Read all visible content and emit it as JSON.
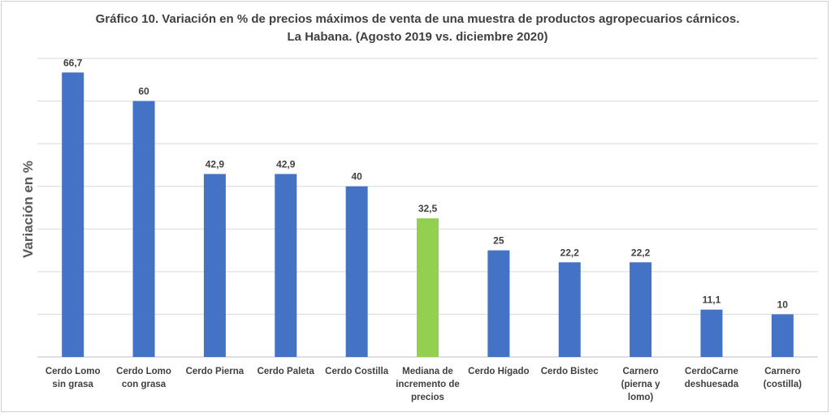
{
  "chart_data": {
    "type": "bar",
    "title_line1": "Gráfico 10. Variación en % de precios máximos de venta de una muestra de productos agropecuarios cárnicos.",
    "title_line2": "La Habana. (Agosto 2019 vs. diciembre 2020)",
    "ylabel": "Variación en %",
    "xlabel": "",
    "ylim": [
      0,
      70
    ],
    "grid": true,
    "categories": [
      "Cerdo Lomo sin grasa",
      "Cerdo Lomo con grasa",
      "Cerdo Pierna",
      "Cerdo Paleta",
      "Cerdo Costilla",
      "Mediana de incremento de precios",
      "Cerdo Hígado",
      "Cerdo Bistec",
      "Carnero (pierna y lomo)",
      "CerdoCarne deshuesada",
      "Carnero (costilla)"
    ],
    "category_lines": [
      [
        "Cerdo Lomo",
        "sin grasa"
      ],
      [
        "Cerdo Lomo",
        "con grasa"
      ],
      [
        "Cerdo Pierna"
      ],
      [
        "Cerdo Paleta"
      ],
      [
        "Cerdo Costilla"
      ],
      [
        "Mediana de",
        "incremento de",
        "precios"
      ],
      [
        "Cerdo Hígado"
      ],
      [
        "Cerdo Bistec"
      ],
      [
        "Carnero",
        "(pierna y",
        "lomo)"
      ],
      [
        "CerdoCarne",
        "deshuesada"
      ],
      [
        "Carnero",
        "(costilla)"
      ]
    ],
    "values": [
      66.7,
      60,
      42.9,
      42.9,
      40,
      32.5,
      25,
      22.2,
      22.2,
      11.1,
      10
    ],
    "value_labels": [
      "66,7",
      "60",
      "42,9",
      "42,9",
      "40",
      "32,5",
      "25",
      "22,2",
      "22,2",
      "11,1",
      "10"
    ],
    "colors": [
      "#4472c4",
      "#4472c4",
      "#4472c4",
      "#4472c4",
      "#4472c4",
      "#92d050",
      "#4472c4",
      "#4472c4",
      "#4472c4",
      "#4472c4",
      "#4472c4"
    ]
  }
}
